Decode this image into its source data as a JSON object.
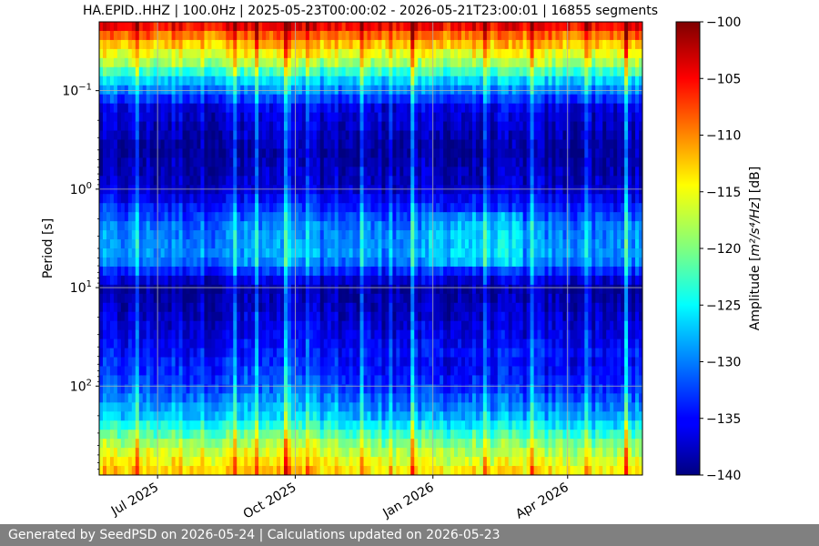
{
  "chart_data": {
    "type": "heatmap",
    "title": "HA.EPID..HHZ | 100.0Hz | 2025-05-23T00:00:02 - 2026-05-21T23:00:01 | 16855 segments",
    "xlabel": "",
    "ylabel": "Period [s]",
    "x_range": [
      "2025-05-23",
      "2026-05-21"
    ],
    "x_ticks": [
      {
        "date": "2025-07-01",
        "label": "Jul 2025"
      },
      {
        "date": "2025-10-01",
        "label": "Oct 2025"
      },
      {
        "date": "2026-01-01",
        "label": "Jan 2026"
      },
      {
        "date": "2026-04-01",
        "label": "Apr 2026"
      }
    ],
    "y_scale": "log",
    "y_inverted": true,
    "y_range": [
      0.02,
      800
    ],
    "y_ticks": [
      {
        "value": 0.1,
        "base": "10",
        "exp": "−1"
      },
      {
        "value": 1,
        "base": "10",
        "exp": "0"
      },
      {
        "value": 10,
        "base": "10",
        "exp": "1"
      },
      {
        "value": 100,
        "base": "10",
        "exp": "2"
      }
    ],
    "grid": true,
    "colormap": "jet",
    "colorbar": {
      "label_prefix": "Amplitude [",
      "label_units": "m²/s⁴/Hz",
      "label_suffix": "] [dB]",
      "range": [
        -140,
        -100
      ],
      "ticks": [
        {
          "value": -100,
          "label": "−100"
        },
        {
          "value": -105,
          "label": "−105"
        },
        {
          "value": -110,
          "label": "−110"
        },
        {
          "value": -115,
          "label": "−115"
        },
        {
          "value": -120,
          "label": "−120"
        },
        {
          "value": -125,
          "label": "−125"
        },
        {
          "value": -130,
          "label": "−130"
        },
        {
          "value": -135,
          "label": "−135"
        },
        {
          "value": -140,
          "label": "−140"
        }
      ]
    },
    "period_profile_db": [
      {
        "period": 0.02,
        "db": -103
      },
      {
        "period": 0.03,
        "db": -111
      },
      {
        "period": 0.05,
        "db": -118
      },
      {
        "period": 0.08,
        "db": -127
      },
      {
        "period": 0.15,
        "db": -136
      },
      {
        "period": 0.4,
        "db": -139
      },
      {
        "period": 1,
        "db": -137
      },
      {
        "period": 2.5,
        "db": -130
      },
      {
        "period": 5,
        "db": -129
      },
      {
        "period": 10,
        "db": -139
      },
      {
        "period": 30,
        "db": -136
      },
      {
        "period": 100,
        "db": -132
      },
      {
        "period": 200,
        "db": -127
      },
      {
        "period": 400,
        "db": -118
      },
      {
        "period": 800,
        "db": -112
      }
    ]
  },
  "footer": {
    "text": "Generated by SeedPSD on 2026-05-24 | Calculations updated on 2026-05-23"
  }
}
